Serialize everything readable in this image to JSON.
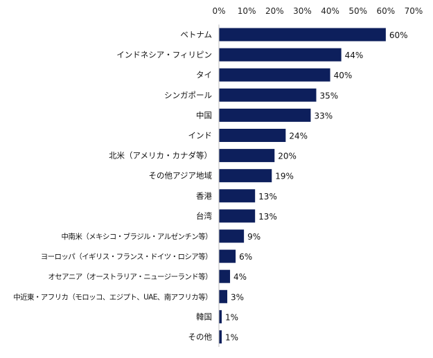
{
  "chart_data": {
    "type": "bar",
    "orientation": "horizontal",
    "title": "",
    "xlabel": "",
    "ylabel": "",
    "xlim": [
      0,
      70
    ],
    "x_ticks": [
      0,
      10,
      20,
      30,
      40,
      50,
      60,
      70
    ],
    "tick_suffix": "%",
    "value_suffix": "%",
    "grid": false,
    "legend": "none",
    "bar_color": "#0d1f5c",
    "categories": [
      "ベトナム",
      "インドネシア・フィリピン",
      "タイ",
      "シンガポール",
      "中国",
      "インド",
      "北米（アメリカ・カナダ等）",
      "その他アジア地域",
      "香港",
      "台湾",
      "中南米（メキシコ・ブラジル・アルゼンチン等）",
      "ヨーロッパ（イギリス・フランス・ドイツ・ロシア等）",
      "オセアニア（オーストラリア・ニュージーランド等）",
      "中近東・アフリカ（モロッコ、エジプト、UAE、南アフリカ等）",
      "韓国",
      "その他"
    ],
    "values": [
      60,
      44,
      40,
      35,
      33,
      24,
      20,
      19,
      13,
      13,
      9,
      6,
      4,
      3,
      1,
      1
    ]
  }
}
